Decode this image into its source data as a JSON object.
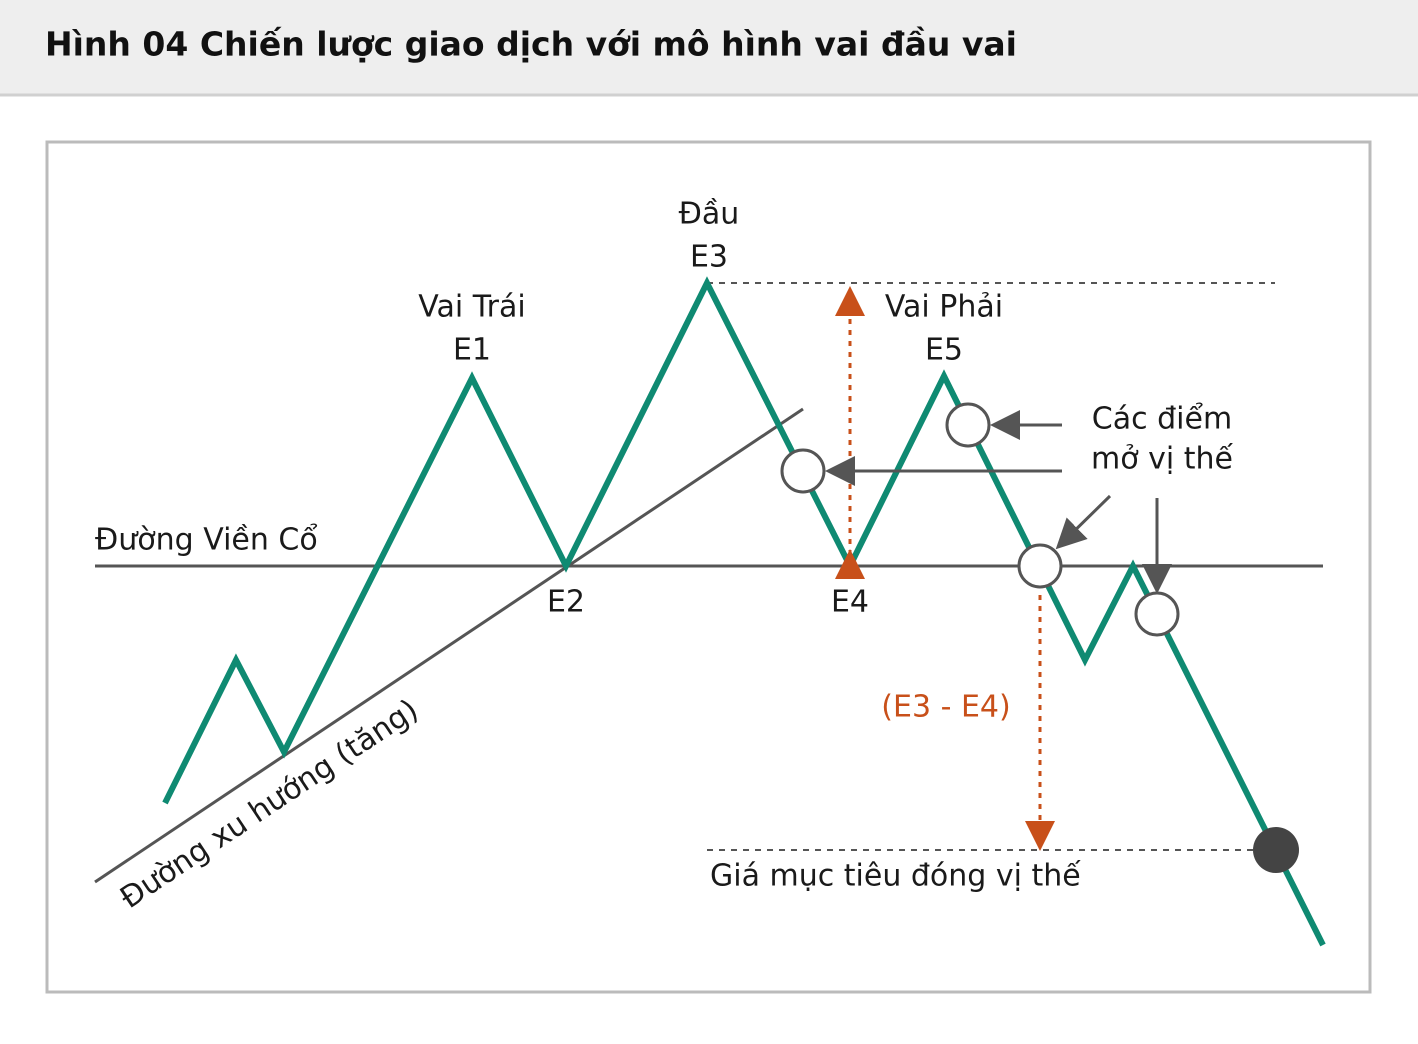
{
  "header": {
    "title": "Hình 04  Chiến lược giao dịch với mô hình vai đầu vai"
  },
  "labels": {
    "head": "Đầu",
    "e3": "E3",
    "left_shoulder": "Vai Trái",
    "e1": "E1",
    "right_shoulder": "Vai Phải",
    "e5": "E5",
    "entry_points_1": "Các điểm",
    "entry_points_2": "mở vị thế",
    "neckline": "Đường Viền Cổ",
    "e2": "E2",
    "e4": "E4",
    "distance": "(E3 - E4)",
    "target": "Giá mục tiêu đóng vị thế",
    "trendline": "Đường xu hướng (tăng)"
  }
}
